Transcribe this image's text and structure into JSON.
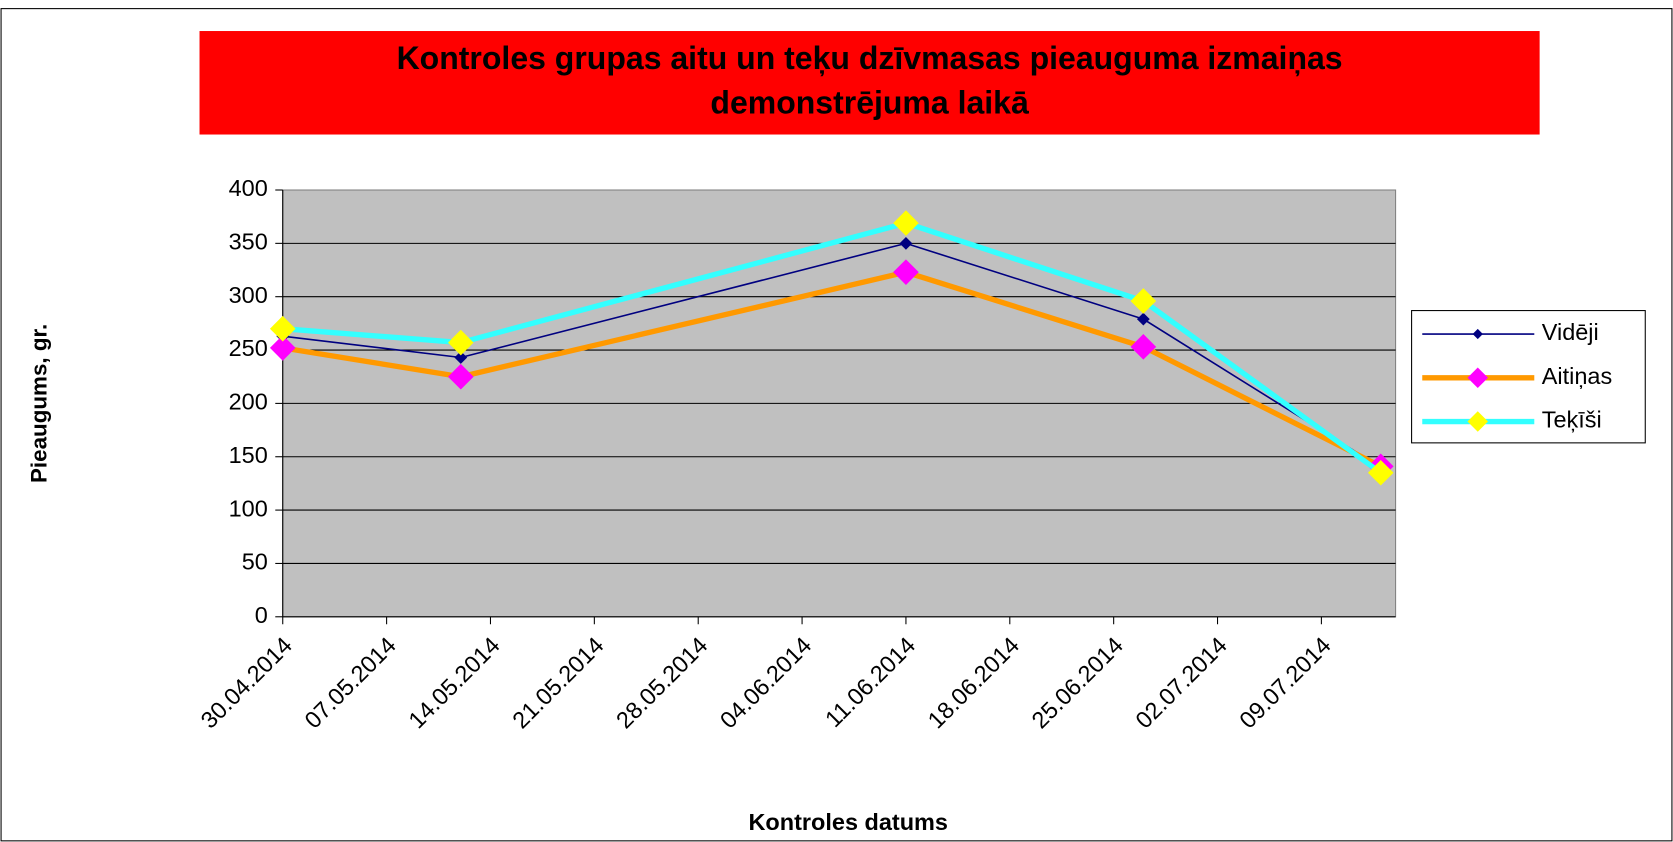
{
  "chart_data": {
    "type": "line",
    "title": "Kontroles grupas aitu un teķu dzīvmasas pieauguma izmaiņas demonstrējuma laikā",
    "x_label": "Kontroles datums",
    "y_label": "Pieaugums, gr.",
    "x": [
      "2014-04-30",
      "2014-05-12",
      "2014-06-11",
      "2014-06-27",
      "2014-07-13"
    ],
    "series": [
      {
        "name": "Vidēji",
        "color": "#000080",
        "marker_color": "#000080",
        "values": [
          263,
          243,
          350,
          279,
          140
        ]
      },
      {
        "name": "Aitiņas",
        "color": "#ff9900",
        "marker_color": "#ff00ff",
        "values": [
          252,
          225,
          323,
          253,
          141
        ]
      },
      {
        "name": "Teķīši",
        "color": "#33ffff",
        "marker_color": "#ffff00",
        "values": [
          270,
          257,
          369,
          296,
          135
        ]
      }
    ],
    "xlim": [
      "2014-04-30",
      "2014-07-14"
    ],
    "xticks": [
      {
        "value": "2014-04-30",
        "label": "30.04.2014"
      },
      {
        "value": "2014-05-07",
        "label": "07.05.2014"
      },
      {
        "value": "2014-05-14",
        "label": "14.05.2014"
      },
      {
        "value": "2014-05-21",
        "label": "21.05.2014"
      },
      {
        "value": "2014-05-28",
        "label": "28.05.2014"
      },
      {
        "value": "2014-06-04",
        "label": "04.06.2014"
      },
      {
        "value": "2014-06-11",
        "label": "11.06.2014"
      },
      {
        "value": "2014-06-18",
        "label": "18.06.2014"
      },
      {
        "value": "2014-06-25",
        "label": "25.06.2014"
      },
      {
        "value": "2014-07-02",
        "label": "02.07.2014"
      },
      {
        "value": "2014-07-09",
        "label": "09.07.2014"
      }
    ],
    "ylim": [
      0,
      400
    ],
    "yticks": [
      0,
      50,
      100,
      150,
      200,
      250,
      300,
      350,
      400
    ],
    "grid": true,
    "legend": "right",
    "title_background": "#ff0000",
    "plot_background": "#c0c0c0"
  }
}
